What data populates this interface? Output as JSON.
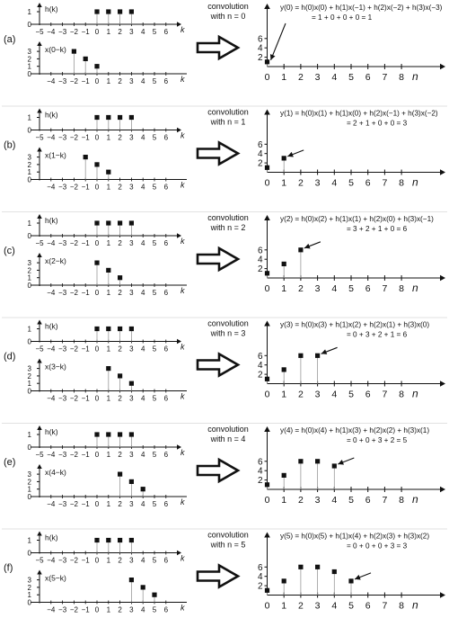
{
  "panels": [
    {
      "id": "a",
      "label": "(a)",
      "n": 0,
      "x_label": "x(0−k)",
      "h_label": "h(k)",
      "conv_line1": "convolution",
      "conv_line2": "with n = 0",
      "eq_line1": "y(0) = h(0)x(0) + h(1)x(−1) + h(2)x(−2) + h(3)x(−3)",
      "eq_line2": "= 1 + 0 + 0 + 0 = 1"
    },
    {
      "id": "b",
      "label": "(b)",
      "n": 1,
      "x_label": "x(1−k)",
      "h_label": "h(k)",
      "conv_line1": "convolution",
      "conv_line2": "with n = 1",
      "eq_line1": "y(1) = h(0)x(1) + h(1)x(0) + h(2)x(−1) + h(3)x(−2)",
      "eq_line2": "= 2 + 1 + 0 + 0 = 3"
    },
    {
      "id": "c",
      "label": "(c)",
      "n": 2,
      "x_label": "x(2−k)",
      "h_label": "h(k)",
      "conv_line1": "convolution",
      "conv_line2": "with n = 2",
      "eq_line1": "y(2) = h(0)x(2) + h(1)x(1) + h(2)x(0) + h(3)x(−1)",
      "eq_line2": "= 3 + 2 + 1 + 0 = 6"
    },
    {
      "id": "d",
      "label": "(d)",
      "n": 3,
      "x_label": "x(3−k)",
      "h_label": "h(k)",
      "conv_line1": "convolution",
      "conv_line2": "with n = 3",
      "eq_line1": "y(3) = h(0)x(3) + h(1)x(2) + h(2)x(1) + h(3)x(0)",
      "eq_line2": "= 0 + 3 + 2 + 1 = 6"
    },
    {
      "id": "e",
      "label": "(e)",
      "n": 4,
      "x_label": "x(4−k)",
      "h_label": "h(k)",
      "conv_line1": "convolution",
      "conv_line2": "with n = 4",
      "eq_line1": "y(4) = h(0)x(4) + h(1)x(3) + h(2)x(2) + h(3)x(1)",
      "eq_line2": "= 0 + 0 + 3 + 2 = 5"
    },
    {
      "id": "f",
      "label": "(f)",
      "n": 5,
      "x_label": "x(5−k)",
      "h_label": "h(k)",
      "conv_line1": "convolution",
      "conv_line2": "with n = 5",
      "eq_line1": "y(5) = h(0)x(5) + h(1)x(4) + h(2)x(3) + h(3)x(2)",
      "eq_line2": "= 0 + 0 + 0 + 3 = 3"
    }
  ],
  "h_values": {
    "k": [
      0,
      1,
      2,
      3
    ],
    "values": [
      1,
      1,
      1,
      1
    ]
  },
  "x_values": {
    "k": [
      0,
      1,
      2
    ],
    "values": [
      1,
      2,
      3
    ]
  },
  "y_values": {
    "n": [
      0,
      1,
      2,
      3,
      4,
      5
    ],
    "values": [
      1,
      3,
      6,
      6,
      5,
      3
    ]
  },
  "k_axis_label": "k",
  "n_axis_label": "n",
  "k_ticks_h": [
    "−5",
    "−4",
    "−3",
    "−2",
    "−1",
    "0",
    "1",
    "2",
    "3",
    "4",
    "5",
    "6"
  ],
  "k_ticks_x": [
    "−4",
    "−3",
    "−2",
    "−1",
    "0",
    "1",
    "2",
    "3",
    "4",
    "5",
    "6"
  ],
  "n_ticks": [
    "0",
    "1",
    "2",
    "3",
    "4",
    "5",
    "6",
    "7",
    "8"
  ],
  "h_yticks": [
    "0",
    "1"
  ],
  "x_yticks": [
    "0",
    "1",
    "2",
    "3"
  ],
  "y_yticks": [
    "2",
    "4",
    "6"
  ],
  "colors": {
    "ink": "#111111",
    "stem": "#9a9a9a",
    "divider": "#d8d8d8"
  }
}
